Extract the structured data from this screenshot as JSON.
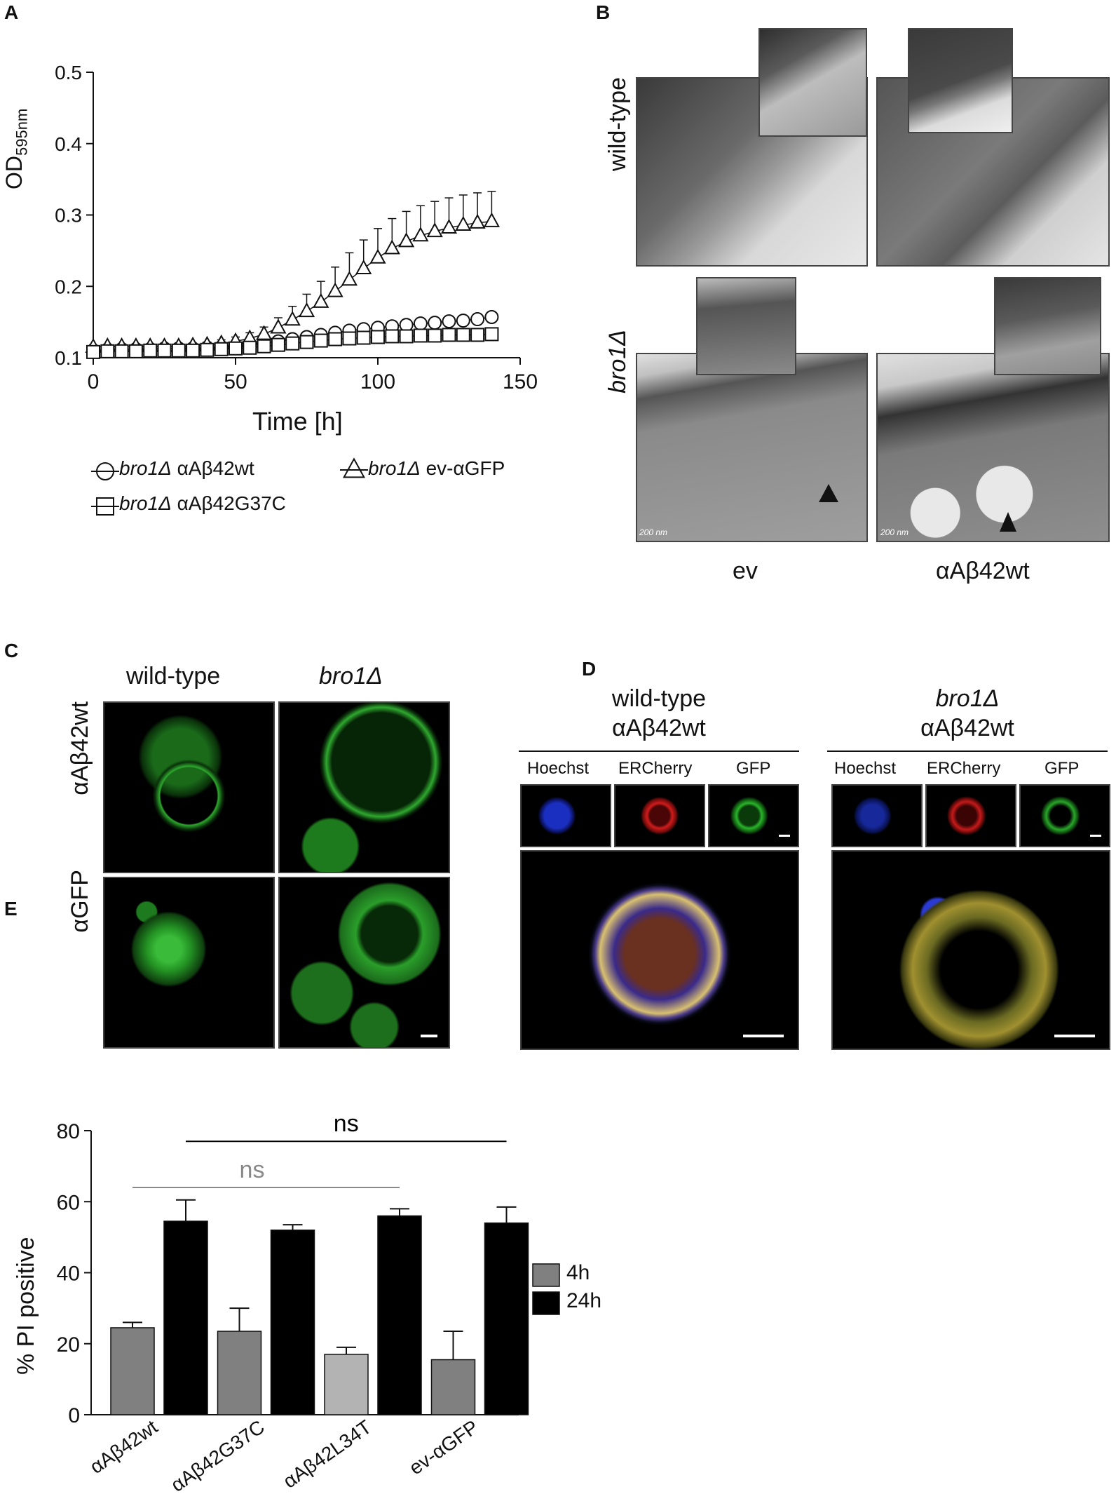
{
  "panels": {
    "A": {
      "label": "A"
    },
    "B": {
      "label": "B"
    },
    "C": {
      "label": "C"
    },
    "D": {
      "label": "D"
    },
    "E": {
      "label": "E"
    }
  },
  "chart_data": [
    {
      "id": "A",
      "type": "line",
      "xlabel": "Time [h]",
      "ylabel": "OD595nm",
      "ylabel_main": "OD",
      "ylabel_sub": "595nm",
      "xlim": [
        0,
        150
      ],
      "ylim": [
        0.1,
        0.5
      ],
      "xticks": [
        0,
        50,
        100,
        150
      ],
      "yticks": [
        0.1,
        0.2,
        0.3,
        0.4,
        0.5
      ],
      "x": [
        0,
        5,
        10,
        15,
        20,
        25,
        30,
        35,
        40,
        45,
        50,
        55,
        60,
        65,
        70,
        75,
        80,
        85,
        90,
        95,
        100,
        105,
        110,
        115,
        120,
        125,
        130,
        135,
        140
      ],
      "series": [
        {
          "name": "bro1Δ αAβ42wt",
          "marker": "circle",
          "values": [
            0.11,
            0.111,
            0.112,
            0.112,
            0.112,
            0.113,
            0.113,
            0.113,
            0.114,
            0.115,
            0.116,
            0.118,
            0.12,
            0.123,
            0.126,
            0.129,
            0.132,
            0.135,
            0.138,
            0.14,
            0.142,
            0.144,
            0.146,
            0.148,
            0.149,
            0.151,
            0.152,
            0.154,
            0.157
          ],
          "err": [
            0.003,
            0.003,
            0.003,
            0.003,
            0.003,
            0.003,
            0.003,
            0.003,
            0.003,
            0.003,
            0.003,
            0.003,
            0.003,
            0.004,
            0.004,
            0.004,
            0.004,
            0.004,
            0.004,
            0.004,
            0.004,
            0.004,
            0.004,
            0.004,
            0.004,
            0.004,
            0.004,
            0.004,
            0.004
          ]
        },
        {
          "name": "bro1Δ ev-αGFP",
          "marker": "triangle",
          "values": [
            0.115,
            0.116,
            0.116,
            0.116,
            0.116,
            0.116,
            0.116,
            0.117,
            0.118,
            0.12,
            0.123,
            0.127,
            0.133,
            0.142,
            0.153,
            0.165,
            0.178,
            0.193,
            0.209,
            0.225,
            0.24,
            0.253,
            0.263,
            0.271,
            0.277,
            0.282,
            0.286,
            0.289,
            0.291
          ],
          "err": [
            0.003,
            0.003,
            0.003,
            0.003,
            0.003,
            0.003,
            0.003,
            0.003,
            0.004,
            0.005,
            0.006,
            0.008,
            0.01,
            0.014,
            0.019,
            0.024,
            0.029,
            0.034,
            0.038,
            0.04,
            0.041,
            0.042,
            0.042,
            0.042,
            0.042,
            0.042,
            0.042,
            0.042,
            0.042
          ]
        },
        {
          "name": "bro1Δ αAβ42G37C",
          "marker": "square",
          "values": [
            0.108,
            0.109,
            0.109,
            0.109,
            0.11,
            0.11,
            0.11,
            0.11,
            0.111,
            0.112,
            0.113,
            0.114,
            0.116,
            0.118,
            0.12,
            0.122,
            0.124,
            0.126,
            0.127,
            0.128,
            0.129,
            0.13,
            0.13,
            0.131,
            0.131,
            0.132,
            0.132,
            0.132,
            0.133
          ],
          "err": [
            0.002,
            0.002,
            0.002,
            0.002,
            0.002,
            0.002,
            0.002,
            0.002,
            0.002,
            0.002,
            0.002,
            0.002,
            0.003,
            0.003,
            0.003,
            0.003,
            0.003,
            0.003,
            0.003,
            0.003,
            0.003,
            0.003,
            0.003,
            0.003,
            0.003,
            0.003,
            0.003,
            0.003,
            0.003
          ]
        }
      ],
      "legend": [
        {
          "italic": "bro1Δ",
          "rest": "αAβ42wt",
          "marker": "circle"
        },
        {
          "italic": "bro1Δ",
          "rest": "ev-αGFP",
          "marker": "triangle"
        },
        {
          "italic": "bro1Δ",
          "rest": "αAβ42G37C",
          "marker": "square"
        }
      ],
      "legend_placement": "bottom",
      "grid": false
    },
    {
      "id": "E",
      "type": "bar",
      "ylabel": "% PI positive",
      "ylim": [
        0,
        80
      ],
      "yticks": [
        0,
        20,
        40,
        60,
        80
      ],
      "categories": [
        "αAβ42wt",
        "αAβ42G37C",
        "αAβ42L34T",
        "ev-αGFP"
      ],
      "series": [
        {
          "name": "4h",
          "color": "#808080",
          "values": [
            24.5,
            23.5,
            17,
            15.5
          ],
          "err": [
            1.5,
            6.5,
            2,
            8
          ]
        },
        {
          "name": "24h",
          "color": "#000000",
          "values": [
            54.5,
            52,
            56,
            54
          ],
          "err": [
            6,
            1.5,
            2,
            4.5
          ]
        }
      ],
      "bar_colors_4h": [
        "#808080",
        "#808080",
        "#b3b3b3",
        "#808080"
      ],
      "annotations": [
        {
          "text": "ns",
          "color": "#000000",
          "from_bar": "αAβ42wt 24h",
          "to_bar": "ev-αGFP 24h"
        },
        {
          "text": "ns",
          "color": "#888888",
          "from_bar": "αAβ42wt 4h",
          "to_bar": "αAβ42L34T 24h"
        }
      ],
      "legend_placement": "right"
    }
  ],
  "panelB": {
    "row_labels": {
      "top": "wild-type",
      "bottom": "bro1Δ"
    },
    "col_labels": [
      "ev",
      "αAβ42wt"
    ],
    "scale_text": "200 nm"
  },
  "panelC": {
    "col_labels": [
      "wild-type",
      "bro1Δ"
    ],
    "row_labels": [
      "αAβ42wt",
      "αGFP"
    ]
  },
  "panelD": {
    "groups": [
      {
        "line1": "wild-type",
        "line2": "αAβ42wt",
        "italic": false
      },
      {
        "line1": "bro1Δ",
        "line2": "αAβ42wt",
        "italic": true
      }
    ],
    "channels": [
      "Hoechst",
      "ERCherry",
      "GFP"
    ]
  }
}
